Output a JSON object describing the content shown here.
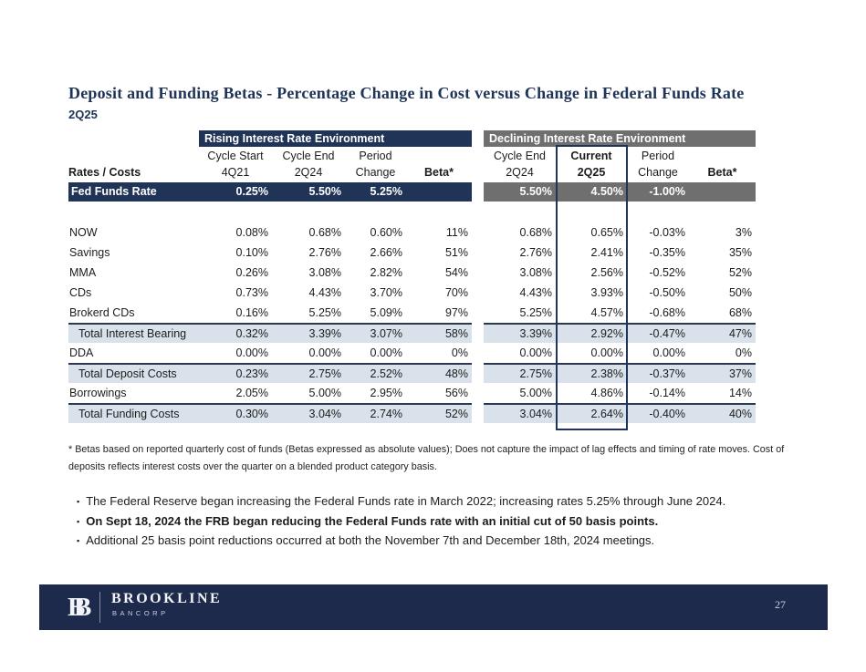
{
  "slide": {
    "title": "Deposit and Funding Betas - Percentage Change in Cost versus Change in Federal Funds Rate",
    "subtitle": "2Q25",
    "footnote": "* Betas based on reported quarterly cost of funds (Betas expressed as absolute values); Does not capture the impact of lag effects and timing of rate moves.  Cost of deposits reflects interest costs over the quarter on a blended product category basis.",
    "bullets": [
      {
        "text": "The Federal Reserve began increasing the Federal Funds rate in March 2022; increasing rates 5.25% through June 2024.",
        "bold": false
      },
      {
        "text": "On Sept 18, 2024 the FRB began reducing the Federal Funds rate with an initial cut of 50 basis points.",
        "bold": true
      },
      {
        "text": "Additional 25 basis point reductions occurred at both the November 7th and December 18th, 2024 meetings.",
        "bold": false
      }
    ]
  },
  "table": {
    "row_label_header": "Rates / Costs",
    "sections": [
      {
        "title": "Rising Interest Rate Environment",
        "columns": [
          {
            "line1": "Cycle Start",
            "line2": "4Q21"
          },
          {
            "line1": "Cycle End",
            "line2": "2Q24"
          },
          {
            "line1": "Period",
            "line2": "Change"
          },
          {
            "line1": "",
            "line2": "Beta*"
          }
        ]
      },
      {
        "title": "Declining Interest Rate Environment",
        "columns": [
          {
            "line1": "Cycle End",
            "line2": "2Q24"
          },
          {
            "line1": "Current",
            "line2": "2Q25"
          },
          {
            "line1": "Period",
            "line2": "Change"
          },
          {
            "line1": "",
            "line2": "Beta*"
          }
        ]
      }
    ],
    "fed_funds_row": {
      "label": "Fed Funds Rate",
      "left": [
        "0.25%",
        "5.50%",
        "5.25%",
        ""
      ],
      "right": [
        "5.50%",
        "4.50%",
        "-1.00%",
        ""
      ]
    },
    "rows": [
      {
        "label": "NOW",
        "highlight": false,
        "left": [
          "0.08%",
          "0.68%",
          "0.60%",
          "11%"
        ],
        "right": [
          "0.68%",
          "0.65%",
          "-0.03%",
          "3%"
        ]
      },
      {
        "label": "Savings",
        "highlight": false,
        "left": [
          "0.10%",
          "2.76%",
          "2.66%",
          "51%"
        ],
        "right": [
          "2.76%",
          "2.41%",
          "-0.35%",
          "35%"
        ]
      },
      {
        "label": "MMA",
        "highlight": false,
        "left": [
          "0.26%",
          "3.08%",
          "2.82%",
          "54%"
        ],
        "right": [
          "3.08%",
          "2.56%",
          "-0.52%",
          "52%"
        ]
      },
      {
        "label": "CDs",
        "highlight": false,
        "left": [
          "0.73%",
          "4.43%",
          "3.70%",
          "70%"
        ],
        "right": [
          "4.43%",
          "3.93%",
          "-0.50%",
          "50%"
        ]
      },
      {
        "label": "Brokerd CDs",
        "highlight": false,
        "left": [
          "0.16%",
          "5.25%",
          "5.09%",
          "97%"
        ],
        "right": [
          "5.25%",
          "4.57%",
          "-0.68%",
          "68%"
        ]
      },
      {
        "label": "Total Interest Bearing",
        "highlight": true,
        "left": [
          "0.32%",
          "3.39%",
          "3.07%",
          "58%"
        ],
        "right": [
          "3.39%",
          "2.92%",
          "-0.47%",
          "47%"
        ]
      },
      {
        "label": "DDA",
        "highlight": false,
        "left": [
          "0.00%",
          "0.00%",
          "0.00%",
          "0%"
        ],
        "right": [
          "0.00%",
          "0.00%",
          "0.00%",
          "0%"
        ]
      },
      {
        "label": "Total Deposit Costs",
        "highlight": true,
        "left": [
          "0.23%",
          "2.75%",
          "2.52%",
          "48%"
        ],
        "right": [
          "2.75%",
          "2.38%",
          "-0.37%",
          "37%"
        ]
      },
      {
        "label": "Borrowings",
        "highlight": false,
        "left": [
          "2.05%",
          "5.00%",
          "2.95%",
          "56%"
        ],
        "right": [
          "5.00%",
          "4.86%",
          "-0.14%",
          "14%"
        ]
      },
      {
        "label": "Total Funding Costs",
        "highlight": true,
        "left": [
          "0.30%",
          "3.04%",
          "2.74%",
          "52%"
        ],
        "right": [
          "3.04%",
          "2.64%",
          "-0.40%",
          "40%"
        ]
      }
    ]
  },
  "footer": {
    "monogram": "B",
    "brand": "BROOKLINE",
    "brand_sub": "BANCORP",
    "page_number": "27"
  },
  "colors": {
    "navy": "#1f3456",
    "gray": "#6f6f6f",
    "light_blue_row": "#d9e2eb",
    "footer_navy": "#1d2a4b"
  }
}
